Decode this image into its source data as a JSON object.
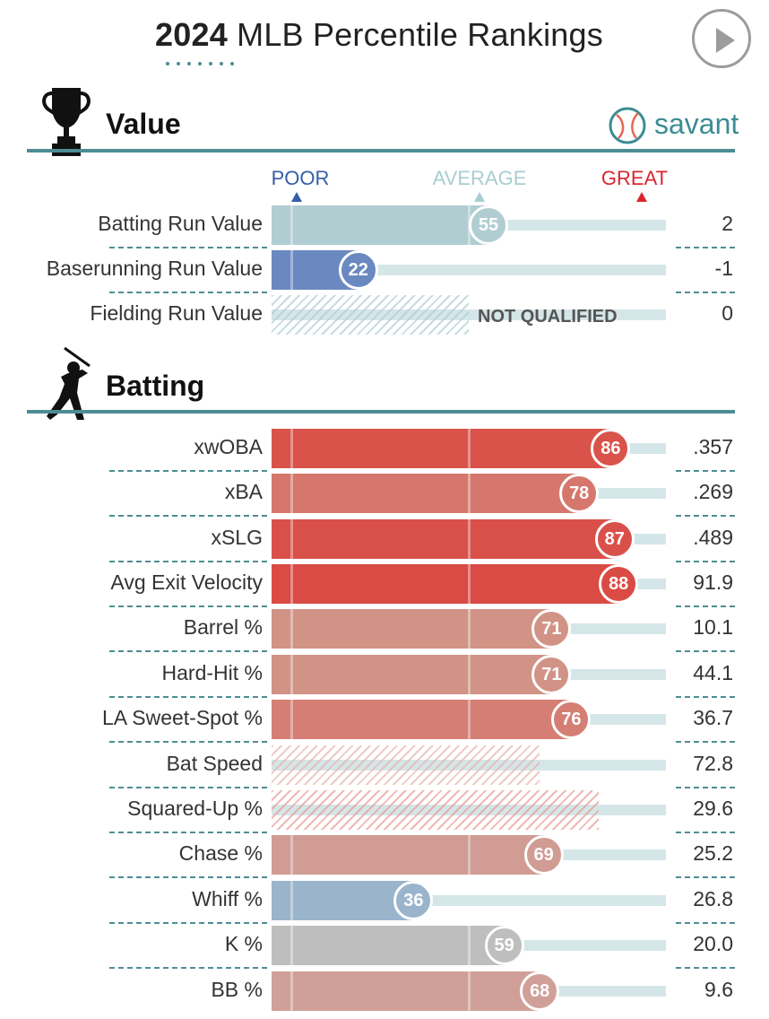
{
  "header": {
    "year": "2024",
    "title_rest": "MLB Percentile Rankings"
  },
  "colors": {
    "section_rule": "#4e8c94",
    "track": "#d5e6e8",
    "savant_teal": "#3c8c94",
    "poor": "#345ea8",
    "great": "#d8262f"
  },
  "brand": {
    "name": "savant",
    "icon": "baseball-icon"
  },
  "scale": {
    "poor": "POOR",
    "average": "AVERAGE",
    "great": "GREAT"
  },
  "chart_data": {
    "type": "bar",
    "title": "2024 MLB Percentile Rankings",
    "xlim": [
      0,
      100
    ],
    "orientation": "horizontal",
    "sections": [
      {
        "key": "value",
        "title": "Value",
        "icon": "trophy-icon",
        "metrics": [
          {
            "label": "Batting Run Value",
            "percentile": 55,
            "value": "2",
            "color": "#b0cdd2",
            "qualified": true
          },
          {
            "label": "Baserunning Run Value",
            "percentile": 22,
            "value": "-1",
            "color": "#6a89c0",
            "qualified": true
          },
          {
            "label": "Fielding Run Value",
            "percentile": null,
            "value": "0",
            "color": "#b0cdd2",
            "qualified": false,
            "status": "NOT QUALIFIED"
          }
        ]
      },
      {
        "key": "batting",
        "title": "Batting",
        "icon": "batter-icon",
        "metrics": [
          {
            "label": "xwOBA",
            "percentile": 86,
            "value": ".357",
            "color": "#d9534a",
            "qualified": true
          },
          {
            "label": "xBA",
            "percentile": 78,
            "value": ".269",
            "color": "#d5776c",
            "qualified": true
          },
          {
            "label": "xSLG",
            "percentile": 87,
            "value": ".489",
            "color": "#d9504a",
            "qualified": true
          },
          {
            "label": "Avg Exit Velocity",
            "percentile": 88,
            "value": "91.9",
            "color": "#da4b45",
            "qualified": true
          },
          {
            "label": "Barrel %",
            "percentile": 71,
            "value": "10.1",
            "color": "#d19386",
            "qualified": true
          },
          {
            "label": "Hard-Hit %",
            "percentile": 71,
            "value": "44.1",
            "color": "#d19386",
            "qualified": true
          },
          {
            "label": "LA Sweet-Spot %",
            "percentile": 76,
            "value": "36.7",
            "color": "#d57f74",
            "qualified": true
          },
          {
            "label": "Bat Speed",
            "percentile": 68,
            "value": "72.8",
            "color": "#e6b3ad",
            "qualified": false
          },
          {
            "label": "Squared-Up %",
            "percentile": 83,
            "value": "29.6",
            "color": "#e89a92",
            "qualified": false
          },
          {
            "label": "Chase %",
            "percentile": 69,
            "value": "25.2",
            "color": "#d09c94",
            "qualified": true
          },
          {
            "label": "Whiff %",
            "percentile": 36,
            "value": "26.8",
            "color": "#9ab4cc",
            "qualified": true
          },
          {
            "label": "K %",
            "percentile": 59,
            "value": "20.0",
            "color": "#bebebe",
            "qualified": true
          },
          {
            "label": "BB %",
            "percentile": 68,
            "value": "9.6",
            "color": "#d0a098",
            "qualified": true
          }
        ]
      }
    ]
  }
}
